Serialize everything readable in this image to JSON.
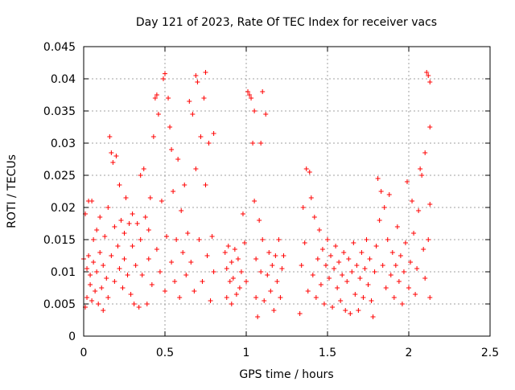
{
  "chart_data": {
    "type": "scatter",
    "title": "Day 121 of 2023, Rate Of TEC Index for receiver vacs",
    "xlabel": "GPS time / hours",
    "ylabel": "ROTI / TECUs",
    "xlim": [
      0,
      2.5
    ],
    "ylim": [
      0,
      0.045
    ],
    "x_ticks": [
      0,
      0.5,
      1,
      1.5,
      2,
      2.5
    ],
    "x_tick_labels": [
      "0",
      "0.5",
      "1",
      "1.5",
      "2",
      "2.5"
    ],
    "y_ticks": [
      0,
      0.005,
      0.01,
      0.015,
      0.02,
      0.025,
      0.03,
      0.035,
      0.04,
      0.045
    ],
    "y_tick_labels": [
      "0",
      "0.005",
      "0.01",
      "0.015",
      "0.02",
      "0.025",
      "0.03",
      "0.035",
      "0.04",
      "0.045"
    ],
    "grid": true,
    "marker": "+",
    "marker_color": "#ff0000",
    "series": [
      {
        "name": "vacs",
        "points": [
          [
            0.0,
            0.012
          ],
          [
            0.01,
            0.0045
          ],
          [
            0.01,
            0.019
          ],
          [
            0.02,
            0.0105
          ],
          [
            0.02,
            0.006
          ],
          [
            0.03,
            0.021
          ],
          [
            0.03,
            0.0125
          ],
          [
            0.04,
            0.008
          ],
          [
            0.04,
            0.0095
          ],
          [
            0.05,
            0.021
          ],
          [
            0.05,
            0.0055
          ],
          [
            0.06,
            0.015
          ],
          [
            0.06,
            0.0115
          ],
          [
            0.07,
            0.007
          ],
          [
            0.08,
            0.0165
          ],
          [
            0.08,
            0.01
          ],
          [
            0.09,
            0.005
          ],
          [
            0.1,
            0.0185
          ],
          [
            0.1,
            0.013
          ],
          [
            0.11,
            0.0075
          ],
          [
            0.12,
            0.004
          ],
          [
            0.12,
            0.011
          ],
          [
            0.13,
            0.0155
          ],
          [
            0.14,
            0.009
          ],
          [
            0.15,
            0.02
          ],
          [
            0.15,
            0.006
          ],
          [
            0.16,
            0.031
          ],
          [
            0.17,
            0.0285
          ],
          [
            0.17,
            0.0125
          ],
          [
            0.18,
            0.027
          ],
          [
            0.19,
            0.017
          ],
          [
            0.19,
            0.0085
          ],
          [
            0.2,
            0.028
          ],
          [
            0.21,
            0.014
          ],
          [
            0.22,
            0.0105
          ],
          [
            0.22,
            0.0235
          ],
          [
            0.23,
            0.018
          ],
          [
            0.24,
            0.0075
          ],
          [
            0.25,
            0.016
          ],
          [
            0.25,
            0.012
          ],
          [
            0.26,
            0.0215
          ],
          [
            0.27,
            0.0095
          ],
          [
            0.28,
            0.0175
          ],
          [
            0.29,
            0.0065
          ],
          [
            0.3,
            0.014
          ],
          [
            0.3,
            0.019
          ],
          [
            0.31,
            0.005
          ],
          [
            0.32,
            0.011
          ],
          [
            0.33,
            0.0175
          ],
          [
            0.34,
            0.0045
          ],
          [
            0.35,
            0.015
          ],
          [
            0.35,
            0.025
          ],
          [
            0.36,
            0.0095
          ],
          [
            0.37,
            0.026
          ],
          [
            0.38,
            0.0185
          ],
          [
            0.39,
            0.005
          ],
          [
            0.4,
            0.012
          ],
          [
            0.4,
            0.0165
          ],
          [
            0.41,
            0.0215
          ],
          [
            0.42,
            0.008
          ],
          [
            0.43,
            0.031
          ],
          [
            0.44,
            0.037
          ],
          [
            0.45,
            0.0375
          ],
          [
            0.45,
            0.0135
          ],
          [
            0.46,
            0.0345
          ],
          [
            0.47,
            0.01
          ],
          [
            0.48,
            0.021
          ],
          [
            0.49,
            0.04
          ],
          [
            0.5,
            0.0408
          ],
          [
            0.5,
            0.007
          ],
          [
            0.51,
            0.0155
          ],
          [
            0.52,
            0.037
          ],
          [
            0.53,
            0.0325
          ],
          [
            0.54,
            0.029
          ],
          [
            0.54,
            0.0115
          ],
          [
            0.55,
            0.0225
          ],
          [
            0.56,
            0.0085
          ],
          [
            0.57,
            0.015
          ],
          [
            0.58,
            0.0275
          ],
          [
            0.59,
            0.006
          ],
          [
            0.6,
            0.0195
          ],
          [
            0.61,
            0.013
          ],
          [
            0.62,
            0.0235
          ],
          [
            0.63,
            0.0095
          ],
          [
            0.64,
            0.016
          ],
          [
            0.65,
            0.0365
          ],
          [
            0.66,
            0.0115
          ],
          [
            0.67,
            0.0345
          ],
          [
            0.68,
            0.007
          ],
          [
            0.69,
            0.0405
          ],
          [
            0.69,
            0.026
          ],
          [
            0.7,
            0.0395
          ],
          [
            0.71,
            0.015
          ],
          [
            0.72,
            0.031
          ],
          [
            0.73,
            0.0085
          ],
          [
            0.74,
            0.037
          ],
          [
            0.75,
            0.041
          ],
          [
            0.75,
            0.0235
          ],
          [
            0.76,
            0.0125
          ],
          [
            0.77,
            0.03
          ],
          [
            0.78,
            0.0055
          ],
          [
            0.79,
            0.0155
          ],
          [
            0.8,
            0.0315
          ],
          [
            0.8,
            0.01
          ],
          [
            0.87,
            0.013
          ],
          [
            0.88,
            0.006
          ],
          [
            0.88,
            0.0105
          ],
          [
            0.89,
            0.014
          ],
          [
            0.9,
            0.0085
          ],
          [
            0.91,
            0.005
          ],
          [
            0.91,
            0.0115
          ],
          [
            0.92,
            0.009
          ],
          [
            0.93,
            0.0135
          ],
          [
            0.94,
            0.0065
          ],
          [
            0.95,
            0.012
          ],
          [
            0.96,
            0.0075
          ],
          [
            0.97,
            0.01
          ],
          [
            0.98,
            0.019
          ],
          [
            0.99,
            0.0145
          ],
          [
            1.0,
            0.0085
          ],
          [
            1.01,
            0.038
          ],
          [
            1.02,
            0.0375
          ],
          [
            1.03,
            0.037
          ],
          [
            1.04,
            0.03
          ],
          [
            1.05,
            0.035
          ],
          [
            1.05,
            0.021
          ],
          [
            1.06,
            0.006
          ],
          [
            1.06,
            0.012
          ],
          [
            1.07,
            0.003
          ],
          [
            1.08,
            0.018
          ],
          [
            1.09,
            0.03
          ],
          [
            1.09,
            0.01
          ],
          [
            1.1,
            0.038
          ],
          [
            1.1,
            0.015
          ],
          [
            1.11,
            0.0055
          ],
          [
            1.12,
            0.0345
          ],
          [
            1.13,
            0.0095
          ],
          [
            1.14,
            0.013
          ],
          [
            1.15,
            0.007
          ],
          [
            1.16,
            0.011
          ],
          [
            1.17,
            0.004
          ],
          [
            1.18,
            0.0125
          ],
          [
            1.19,
            0.0085
          ],
          [
            1.2,
            0.015
          ],
          [
            1.21,
            0.006
          ],
          [
            1.22,
            0.0105
          ],
          [
            1.23,
            0.0125
          ],
          [
            1.33,
            0.0035
          ],
          [
            1.34,
            0.011
          ],
          [
            1.35,
            0.02
          ],
          [
            1.36,
            0.0145
          ],
          [
            1.37,
            0.026
          ],
          [
            1.38,
            0.007
          ],
          [
            1.39,
            0.0255
          ],
          [
            1.4,
            0.0215
          ],
          [
            1.41,
            0.0095
          ],
          [
            1.42,
            0.0185
          ],
          [
            1.43,
            0.006
          ],
          [
            1.44,
            0.012
          ],
          [
            1.45,
            0.0165
          ],
          [
            1.46,
            0.008
          ],
          [
            1.47,
            0.0135
          ],
          [
            1.48,
            0.005
          ],
          [
            1.49,
            0.011
          ],
          [
            1.5,
            0.015
          ],
          [
            1.51,
            0.009
          ],
          [
            1.52,
            0.0125
          ],
          [
            1.53,
            0.0045
          ],
          [
            1.54,
            0.0105
          ],
          [
            1.55,
            0.014
          ],
          [
            1.56,
            0.0075
          ],
          [
            1.57,
            0.0115
          ],
          [
            1.58,
            0.0055
          ],
          [
            1.59,
            0.0095
          ],
          [
            1.6,
            0.013
          ],
          [
            1.61,
            0.004
          ],
          [
            1.62,
            0.0085
          ],
          [
            1.63,
            0.012
          ],
          [
            1.64,
            0.0035
          ],
          [
            1.65,
            0.01
          ],
          [
            1.66,
            0.0145
          ],
          [
            1.67,
            0.0065
          ],
          [
            1.68,
            0.011
          ],
          [
            1.69,
            0.004
          ],
          [
            1.7,
            0.009
          ],
          [
            1.71,
            0.013
          ],
          [
            1.72,
            0.006
          ],
          [
            1.73,
            0.0105
          ],
          [
            1.74,
            0.015
          ],
          [
            1.75,
            0.008
          ],
          [
            1.76,
            0.012
          ],
          [
            1.77,
            0.0055
          ],
          [
            1.78,
            0.003
          ],
          [
            1.79,
            0.01
          ],
          [
            1.8,
            0.014
          ],
          [
            1.81,
            0.0245
          ],
          [
            1.82,
            0.018
          ],
          [
            1.83,
            0.0225
          ],
          [
            1.84,
            0.011
          ],
          [
            1.85,
            0.02
          ],
          [
            1.86,
            0.0075
          ],
          [
            1.87,
            0.015
          ],
          [
            1.88,
            0.022
          ],
          [
            1.89,
            0.0095
          ],
          [
            1.9,
            0.013
          ],
          [
            1.91,
            0.006
          ],
          [
            1.92,
            0.011
          ],
          [
            1.93,
            0.017
          ],
          [
            1.94,
            0.0085
          ],
          [
            1.95,
            0.0125
          ],
          [
            1.96,
            0.005
          ],
          [
            1.97,
            0.01
          ],
          [
            1.98,
            0.0145
          ],
          [
            1.99,
            0.024
          ],
          [
            2.0,
            0.0075
          ],
          [
            2.01,
            0.0115
          ],
          [
            2.02,
            0.021
          ],
          [
            2.03,
            0.016
          ],
          [
            2.04,
            0.0065
          ],
          [
            2.05,
            0.0105
          ],
          [
            2.06,
            0.0195
          ],
          [
            2.07,
            0.026
          ],
          [
            2.08,
            0.025
          ],
          [
            2.09,
            0.0135
          ],
          [
            2.1,
            0.0285
          ],
          [
            2.1,
            0.009
          ],
          [
            2.11,
            0.041
          ],
          [
            2.12,
            0.0405
          ],
          [
            2.12,
            0.015
          ],
          [
            2.13,
            0.0395
          ],
          [
            2.13,
            0.0205
          ],
          [
            2.13,
            0.0325
          ],
          [
            2.13,
            0.006
          ]
        ]
      }
    ]
  }
}
